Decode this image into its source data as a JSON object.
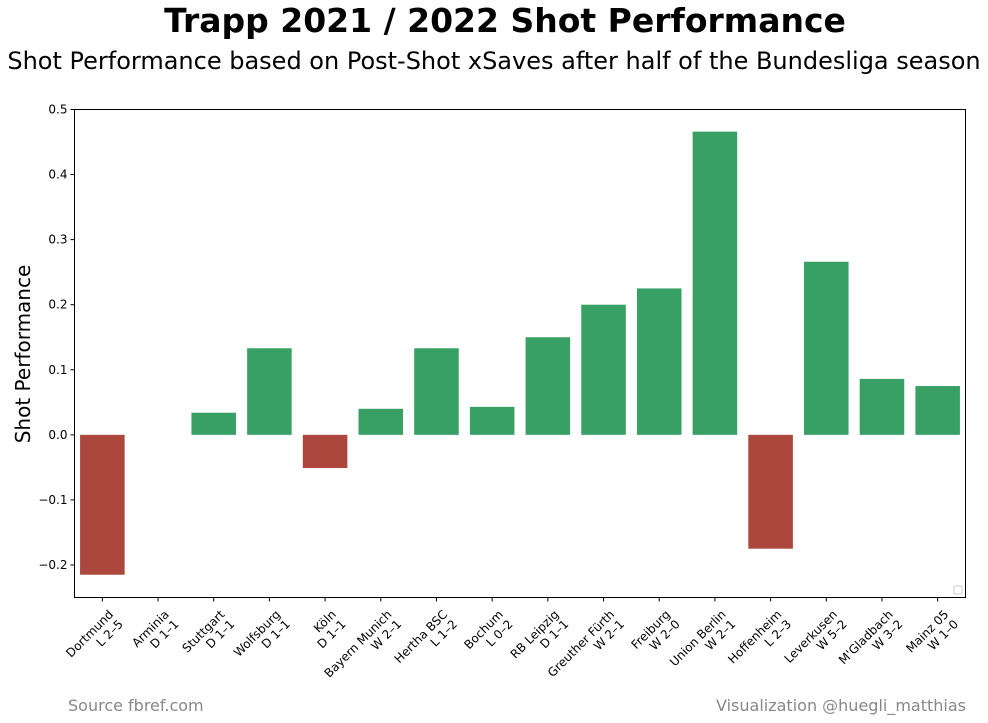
{
  "title": "Trapp 2021 / 2022 Shot Performance",
  "subtitle": "Shot Performance based on Post-Shot xSaves after half of the Bundesliga season",
  "source": "Source fbref.com",
  "credit": "Visualization @huegli_matthias",
  "colors": {
    "positive": "#38a065",
    "negative": "#ab473d"
  },
  "chart_data": {
    "type": "bar",
    "ylabel": "Shot Performance",
    "xlabel": "",
    "ylim": [
      -0.25,
      0.5
    ],
    "yticks": [
      -0.2,
      -0.1,
      0.0,
      0.1,
      0.2,
      0.3,
      0.4,
      0.5
    ],
    "ytick_labels": [
      "−0.2",
      "−0.1",
      "0.0",
      "0.1",
      "0.2",
      "0.3",
      "0.4",
      "0.5"
    ],
    "grid": false,
    "legend": "lower-right (empty)",
    "categories": [
      {
        "team": "Dortmund",
        "result": "L 2–5",
        "value": -0.215
      },
      {
        "team": "Arminia",
        "result": "D 1–1",
        "value": 0.0
      },
      {
        "team": "Stuttgart",
        "result": "D 1–1",
        "value": 0.034
      },
      {
        "team": "Wolfsburg",
        "result": "D 1–1",
        "value": 0.133
      },
      {
        "team": "Köln",
        "result": "D 1–1",
        "value": -0.051
      },
      {
        "team": "Bayern Munich",
        "result": "W 2–1",
        "value": 0.04
      },
      {
        "team": "Hertha BSC",
        "result": "L 1–2",
        "value": 0.133
      },
      {
        "team": "Bochum",
        "result": "L 0–2",
        "value": 0.043
      },
      {
        "team": "RB Leipzig",
        "result": "D 1–1",
        "value": 0.15
      },
      {
        "team": "Greuther Fürth",
        "result": "W 2–1",
        "value": 0.2
      },
      {
        "team": "Freiburg",
        "result": "W 2–0",
        "value": 0.225
      },
      {
        "team": "Union Berlin",
        "result": "W 2–1",
        "value": 0.466
      },
      {
        "team": "Hoffenheim",
        "result": "L 2–3",
        "value": -0.175
      },
      {
        "team": "Leverkusen",
        "result": "W 5–2",
        "value": 0.266
      },
      {
        "team": "M'Gladbach",
        "result": "W 3–2",
        "value": 0.086
      },
      {
        "team": "Mainz 05",
        "result": "W 1–0",
        "value": 0.075
      }
    ]
  }
}
